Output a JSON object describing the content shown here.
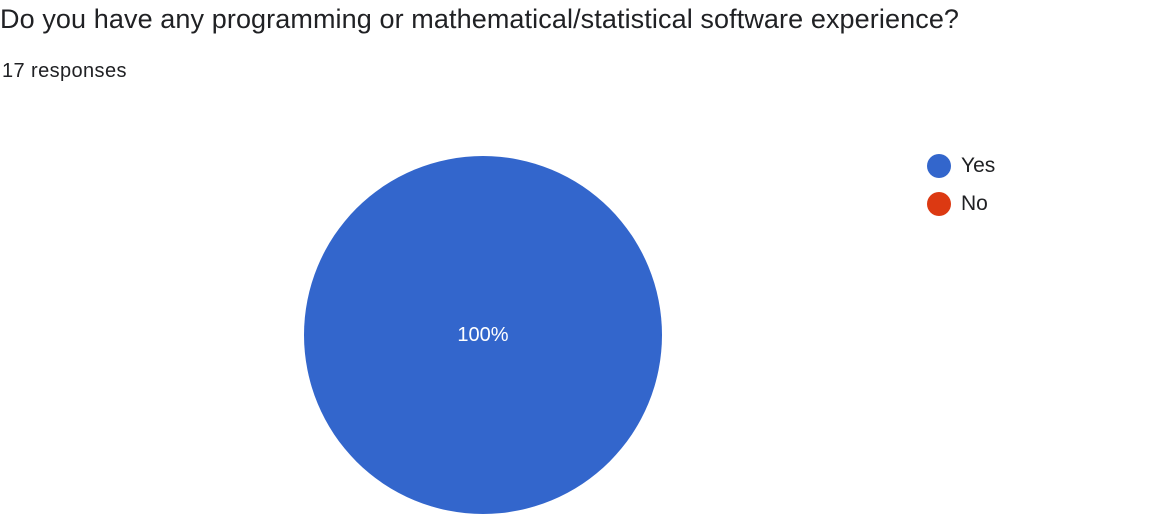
{
  "question": {
    "title": "Do you have any programming or mathematical/statistical software experience?",
    "responses": "17 responses"
  },
  "chart_data": {
    "type": "pie",
    "title": "Do you have any programming or mathematical/statistical software experience?",
    "categories": [
      "Yes",
      "No"
    ],
    "values": [
      100,
      0
    ],
    "labels": [
      "100%",
      ""
    ],
    "colors": [
      "#3366cc",
      "#dc3912"
    ],
    "legend": "right"
  }
}
